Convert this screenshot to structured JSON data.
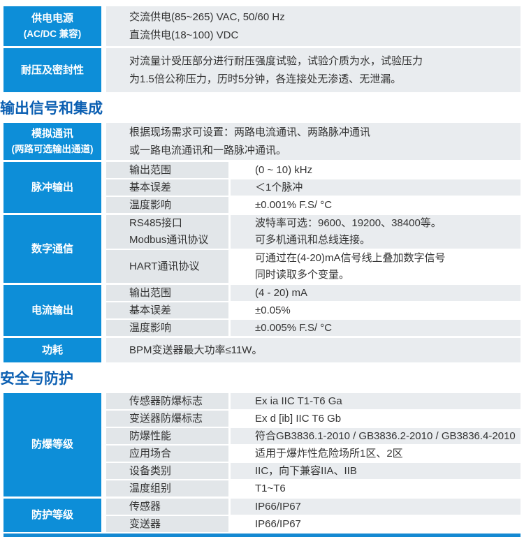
{
  "colors": {
    "group_header_blue": "#0d8ed8",
    "section_title_blue": "#0b5fb2",
    "label_cell_gray": "#e2e6e9",
    "shaded_row_gray": "#e9ecef",
    "bottom_bar_blue": "#1489d2",
    "body_text": "#333333"
  },
  "t1": {
    "power": {
      "h1": "供电电源",
      "h2": "(AC/DC 兼容)",
      "l1": "交流供电(85~265) VAC, 50/60 Hz",
      "l2": "直流供电(18~100) VDC"
    },
    "seal": {
      "h": "耐压及密封性",
      "l1": "对流量计受压部分进行耐压强度试验，试验介质为水，试验压力",
      "l2": "为1.5倍公称压力，历时5分钟，各连接处无渗透、无泄漏。"
    }
  },
  "s2": {
    "title": "输出信号和集成",
    "analog": {
      "h1": "模拟通讯",
      "h2": "(两路可选输出通道)",
      "l1": "根据现场需求可设置：两路电流通讯、两路脉冲通讯",
      "l2": "或一路电流通讯和一路脉冲通讯。"
    },
    "pulse": {
      "h": "脉冲输出",
      "rows": [
        {
          "label": "输出范围",
          "value": "(0 ~ 10) kHz"
        },
        {
          "label": "基本误差",
          "value": "＜1个脉冲"
        },
        {
          "label": "温度影响",
          "value": "±0.001% F.S/ °C"
        }
      ]
    },
    "digital": {
      "h": "数字通信",
      "r1": {
        "label1": "RS485接口",
        "label2": "Modbus通讯协议",
        "value1": "波特率可选：9600、19200、38400等。",
        "value2": "可多机通讯和总线连接。"
      },
      "r2": {
        "label1": "HART通讯协议",
        "value1": "可通过在(4-20)mA信号线上叠加数字信号",
        "value2": "同时读取多个变量。"
      }
    },
    "current": {
      "h": "电流输出",
      "rows": [
        {
          "label": "输出范围",
          "value": "(4 - 20) mA"
        },
        {
          "label": "基本误差",
          "value": "±0.05%"
        },
        {
          "label": "温度影响",
          "value": "±0.005% F.S/ °C"
        }
      ]
    },
    "power": {
      "h": "功耗",
      "value": "BPM变送器最大功率≤11W。"
    }
  },
  "s3": {
    "title": "安全与防护",
    "ex": {
      "h": "防爆等级",
      "rows": [
        {
          "label": "传感器防爆标志",
          "value": "Ex ia IIC T1-T6 Ga"
        },
        {
          "label": "变送器防爆标志",
          "value": "Ex d [ib] IIC T6 Gb"
        },
        {
          "label": "防爆性能",
          "value": "符合GB3836.1-2010 / GB3836.2-2010 / GB3836.4-2010"
        },
        {
          "label": "应用场合",
          "value": "适用于爆炸性危险场所1区、2区"
        },
        {
          "label": "设备类别",
          "value": "IIC，向下兼容IIA、IIB"
        },
        {
          "label": "温度组别",
          "value": "T1~T6"
        }
      ]
    },
    "ip": {
      "h": "防护等级",
      "rows": [
        {
          "label": "传感器",
          "value": "IP66/IP67"
        },
        {
          "label": "变送器",
          "value": "IP66/IP67"
        }
      ]
    }
  }
}
